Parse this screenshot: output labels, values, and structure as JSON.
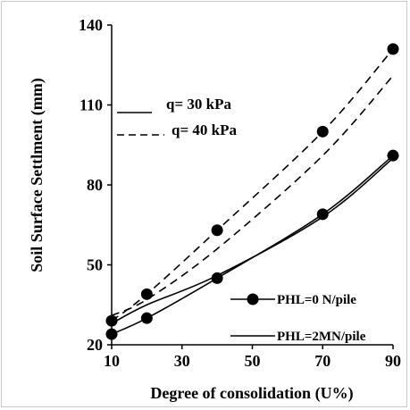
{
  "chart_data": {
    "type": "line",
    "xlabel": "Degree of consolidation  (U%)",
    "ylabel": "Soil Surface Settlment (mm)",
    "xlim": [
      10,
      90
    ],
    "ylim": [
      20,
      140
    ],
    "xticks": [
      10,
      30,
      50,
      70,
      90
    ],
    "yticks": [
      20,
      50,
      80,
      110,
      140
    ],
    "grid": false,
    "load_legend": {
      "solid": "q= 30 kPa",
      "dashed": "q= 40 kPa"
    },
    "marker_legend": {
      "markers": "PHL=0 N/pile",
      "no_markers": "PHL=2MN/pile"
    },
    "series": [
      {
        "style": "solid-markers",
        "x": [
          10,
          20,
          40,
          70,
          90
        ],
        "y": [
          24,
          30,
          45,
          69,
          91
        ]
      },
      {
        "style": "solid",
        "x": [
          10,
          20,
          40,
          70,
          90
        ],
        "y": [
          28,
          35,
          46,
          68,
          90
        ]
      },
      {
        "style": "dashed-markers",
        "x": [
          10,
          20,
          40,
          70,
          90
        ],
        "y": [
          29,
          39,
          63,
          100,
          131
        ]
      },
      {
        "style": "dashed",
        "x": [
          10,
          20,
          40,
          70,
          90
        ],
        "y": [
          31,
          37,
          56,
          91,
          121
        ]
      }
    ]
  }
}
